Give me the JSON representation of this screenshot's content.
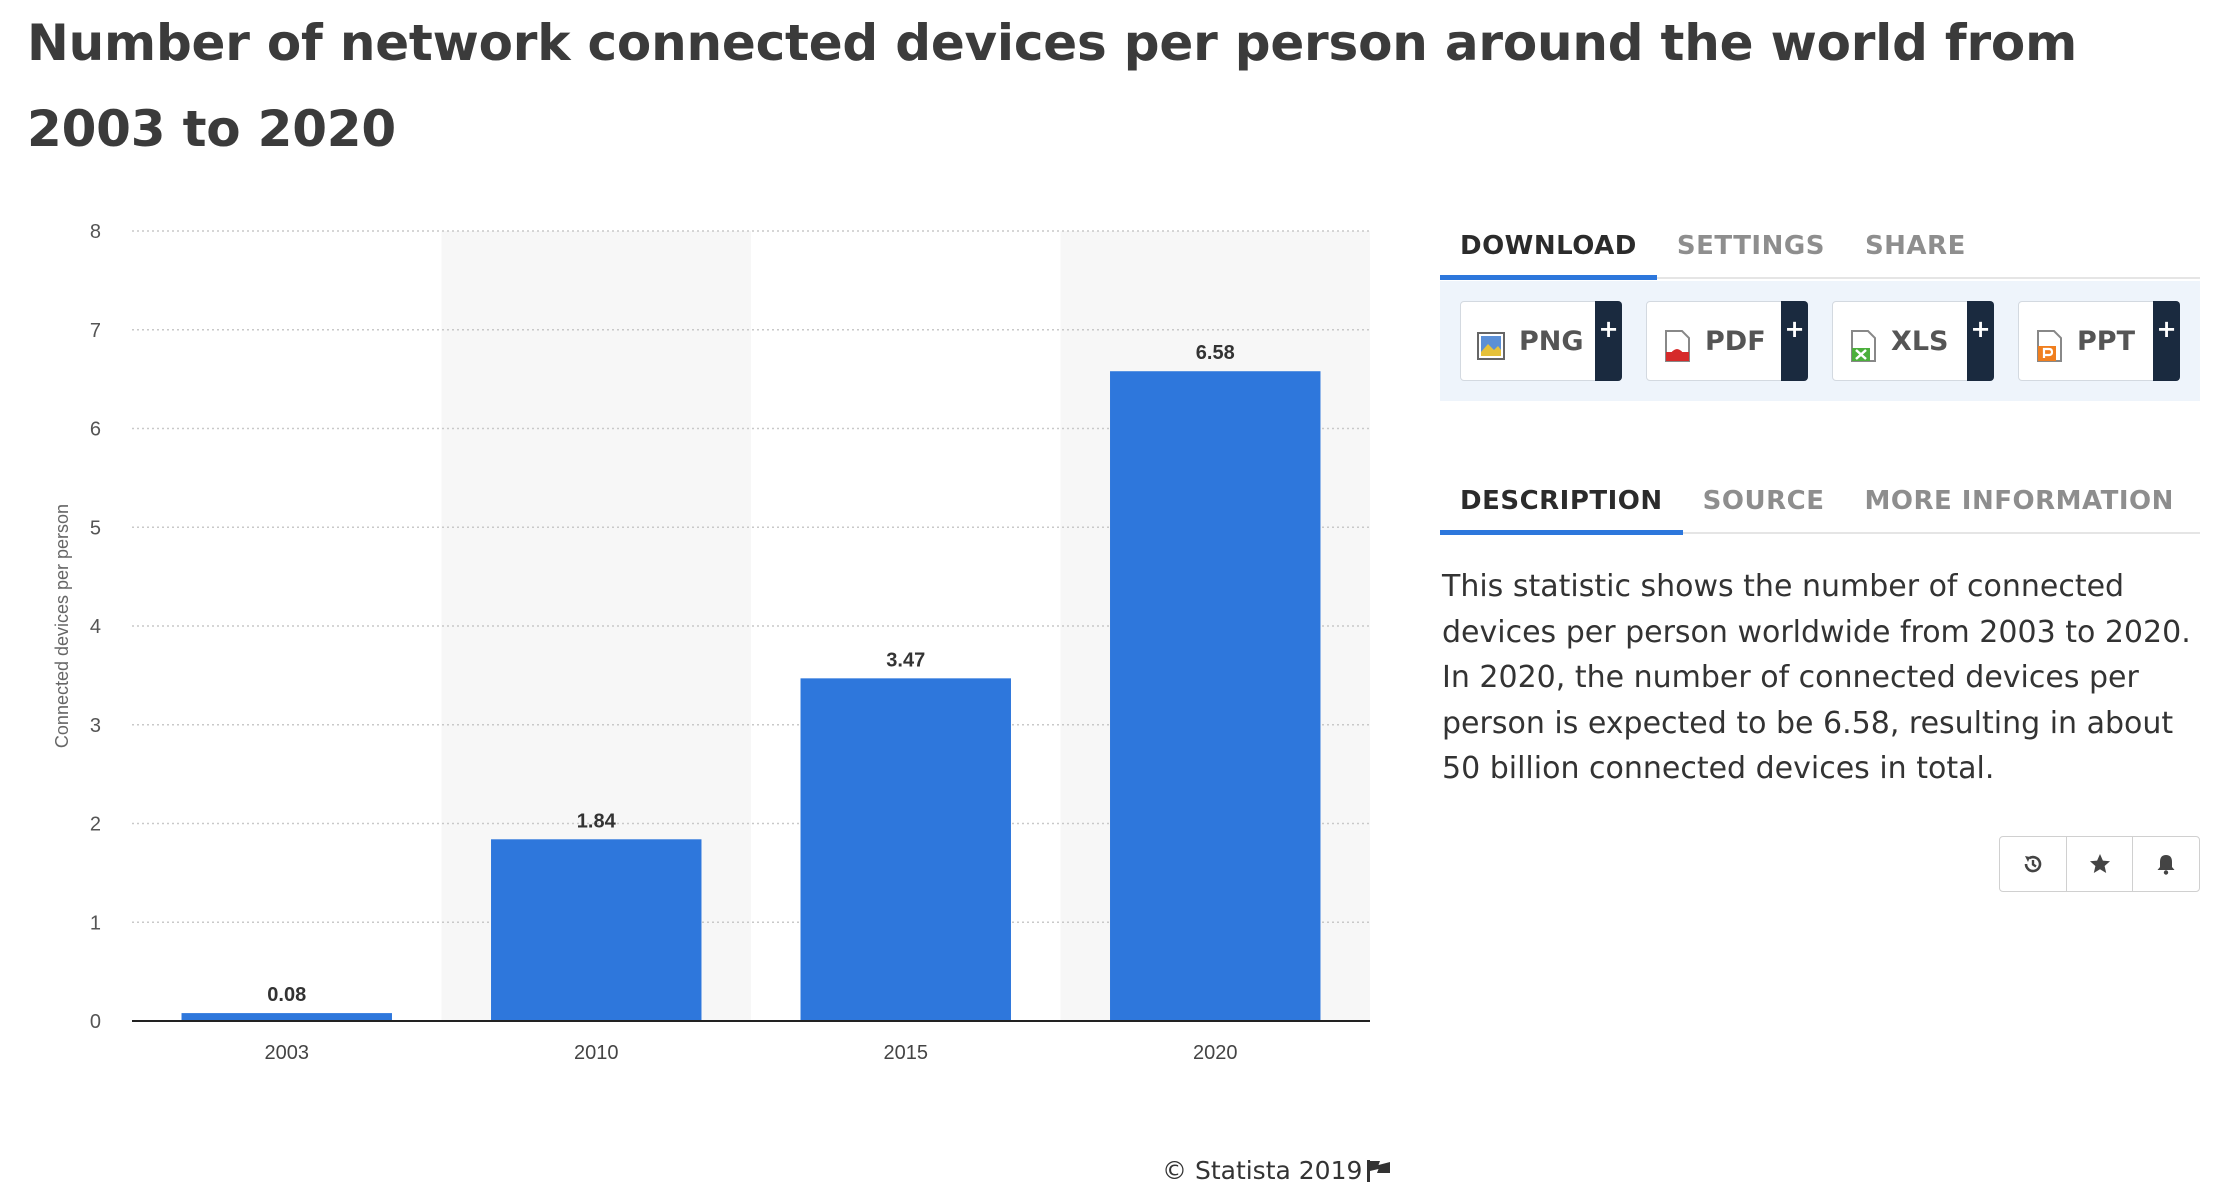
{
  "title": "Number of network connected devices per person around the world from 2003 to 2020",
  "chart_data": {
    "type": "bar",
    "categories": [
      "2003",
      "2010",
      "2015",
      "2020"
    ],
    "values": [
      0.08,
      1.84,
      3.47,
      6.58
    ],
    "value_labels": [
      "0.08",
      "1.84",
      "3.47",
      "6.58"
    ],
    "ylabel": "Connected devices per person",
    "xlabel": "",
    "ylim": [
      0,
      8
    ],
    "yticks": [
      "0",
      "1",
      "2",
      "3",
      "4",
      "5",
      "6",
      "7",
      "8"
    ],
    "grid": true,
    "bar_color": "#2e77dc",
    "alt_band_color": "#f7f7f7"
  },
  "download_tabs": [
    "DOWNLOAD",
    "SETTINGS",
    "SHARE"
  ],
  "downloads": [
    {
      "label": "PNG",
      "icon": "png-file-icon",
      "plus": "+"
    },
    {
      "label": "PDF",
      "icon": "pdf-file-icon",
      "plus": "+"
    },
    {
      "label": "XLS",
      "icon": "xls-file-icon",
      "plus": "+"
    },
    {
      "label": "PPT",
      "icon": "ppt-file-icon",
      "plus": "+"
    }
  ],
  "info_tabs": [
    "DESCRIPTION",
    "SOURCE",
    "MORE INFORMATION"
  ],
  "description": "This statistic shows the number of connected devices per person worldwide from 2003 to 2020. In 2020, the number of connected devices per person is expected to be 6.58, resulting in about 50 billion connected devices in total.",
  "actions": [
    "history-icon",
    "star-icon",
    "bell-icon"
  ],
  "copyright": "© Statista 2019",
  "accent_color": "#2d77dc"
}
